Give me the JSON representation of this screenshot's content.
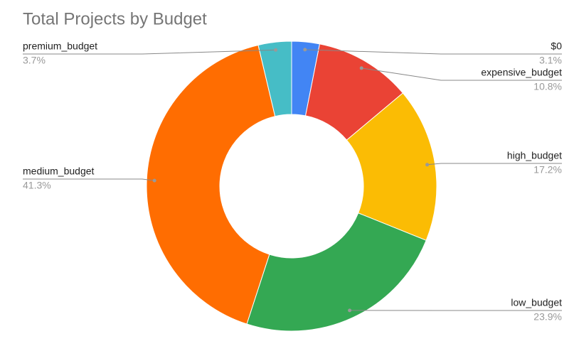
{
  "chart_data": {
    "type": "donut",
    "title": "Total Projects by Budget",
    "categories": [
      "$0",
      "expensive_budget",
      "high_budget",
      "low_budget",
      "medium_budget",
      "premium_budget"
    ],
    "values": [
      3.1,
      10.8,
      17.2,
      23.9,
      41.3,
      3.7
    ],
    "value_labels": [
      "3.1%",
      "10.8%",
      "17.2%",
      "23.9%",
      "41.3%",
      "3.7%"
    ],
    "colors": [
      "#4285f4",
      "#ea4335",
      "#fbbc04",
      "#34a853",
      "#ff6d01",
      "#46bdc6"
    ]
  }
}
